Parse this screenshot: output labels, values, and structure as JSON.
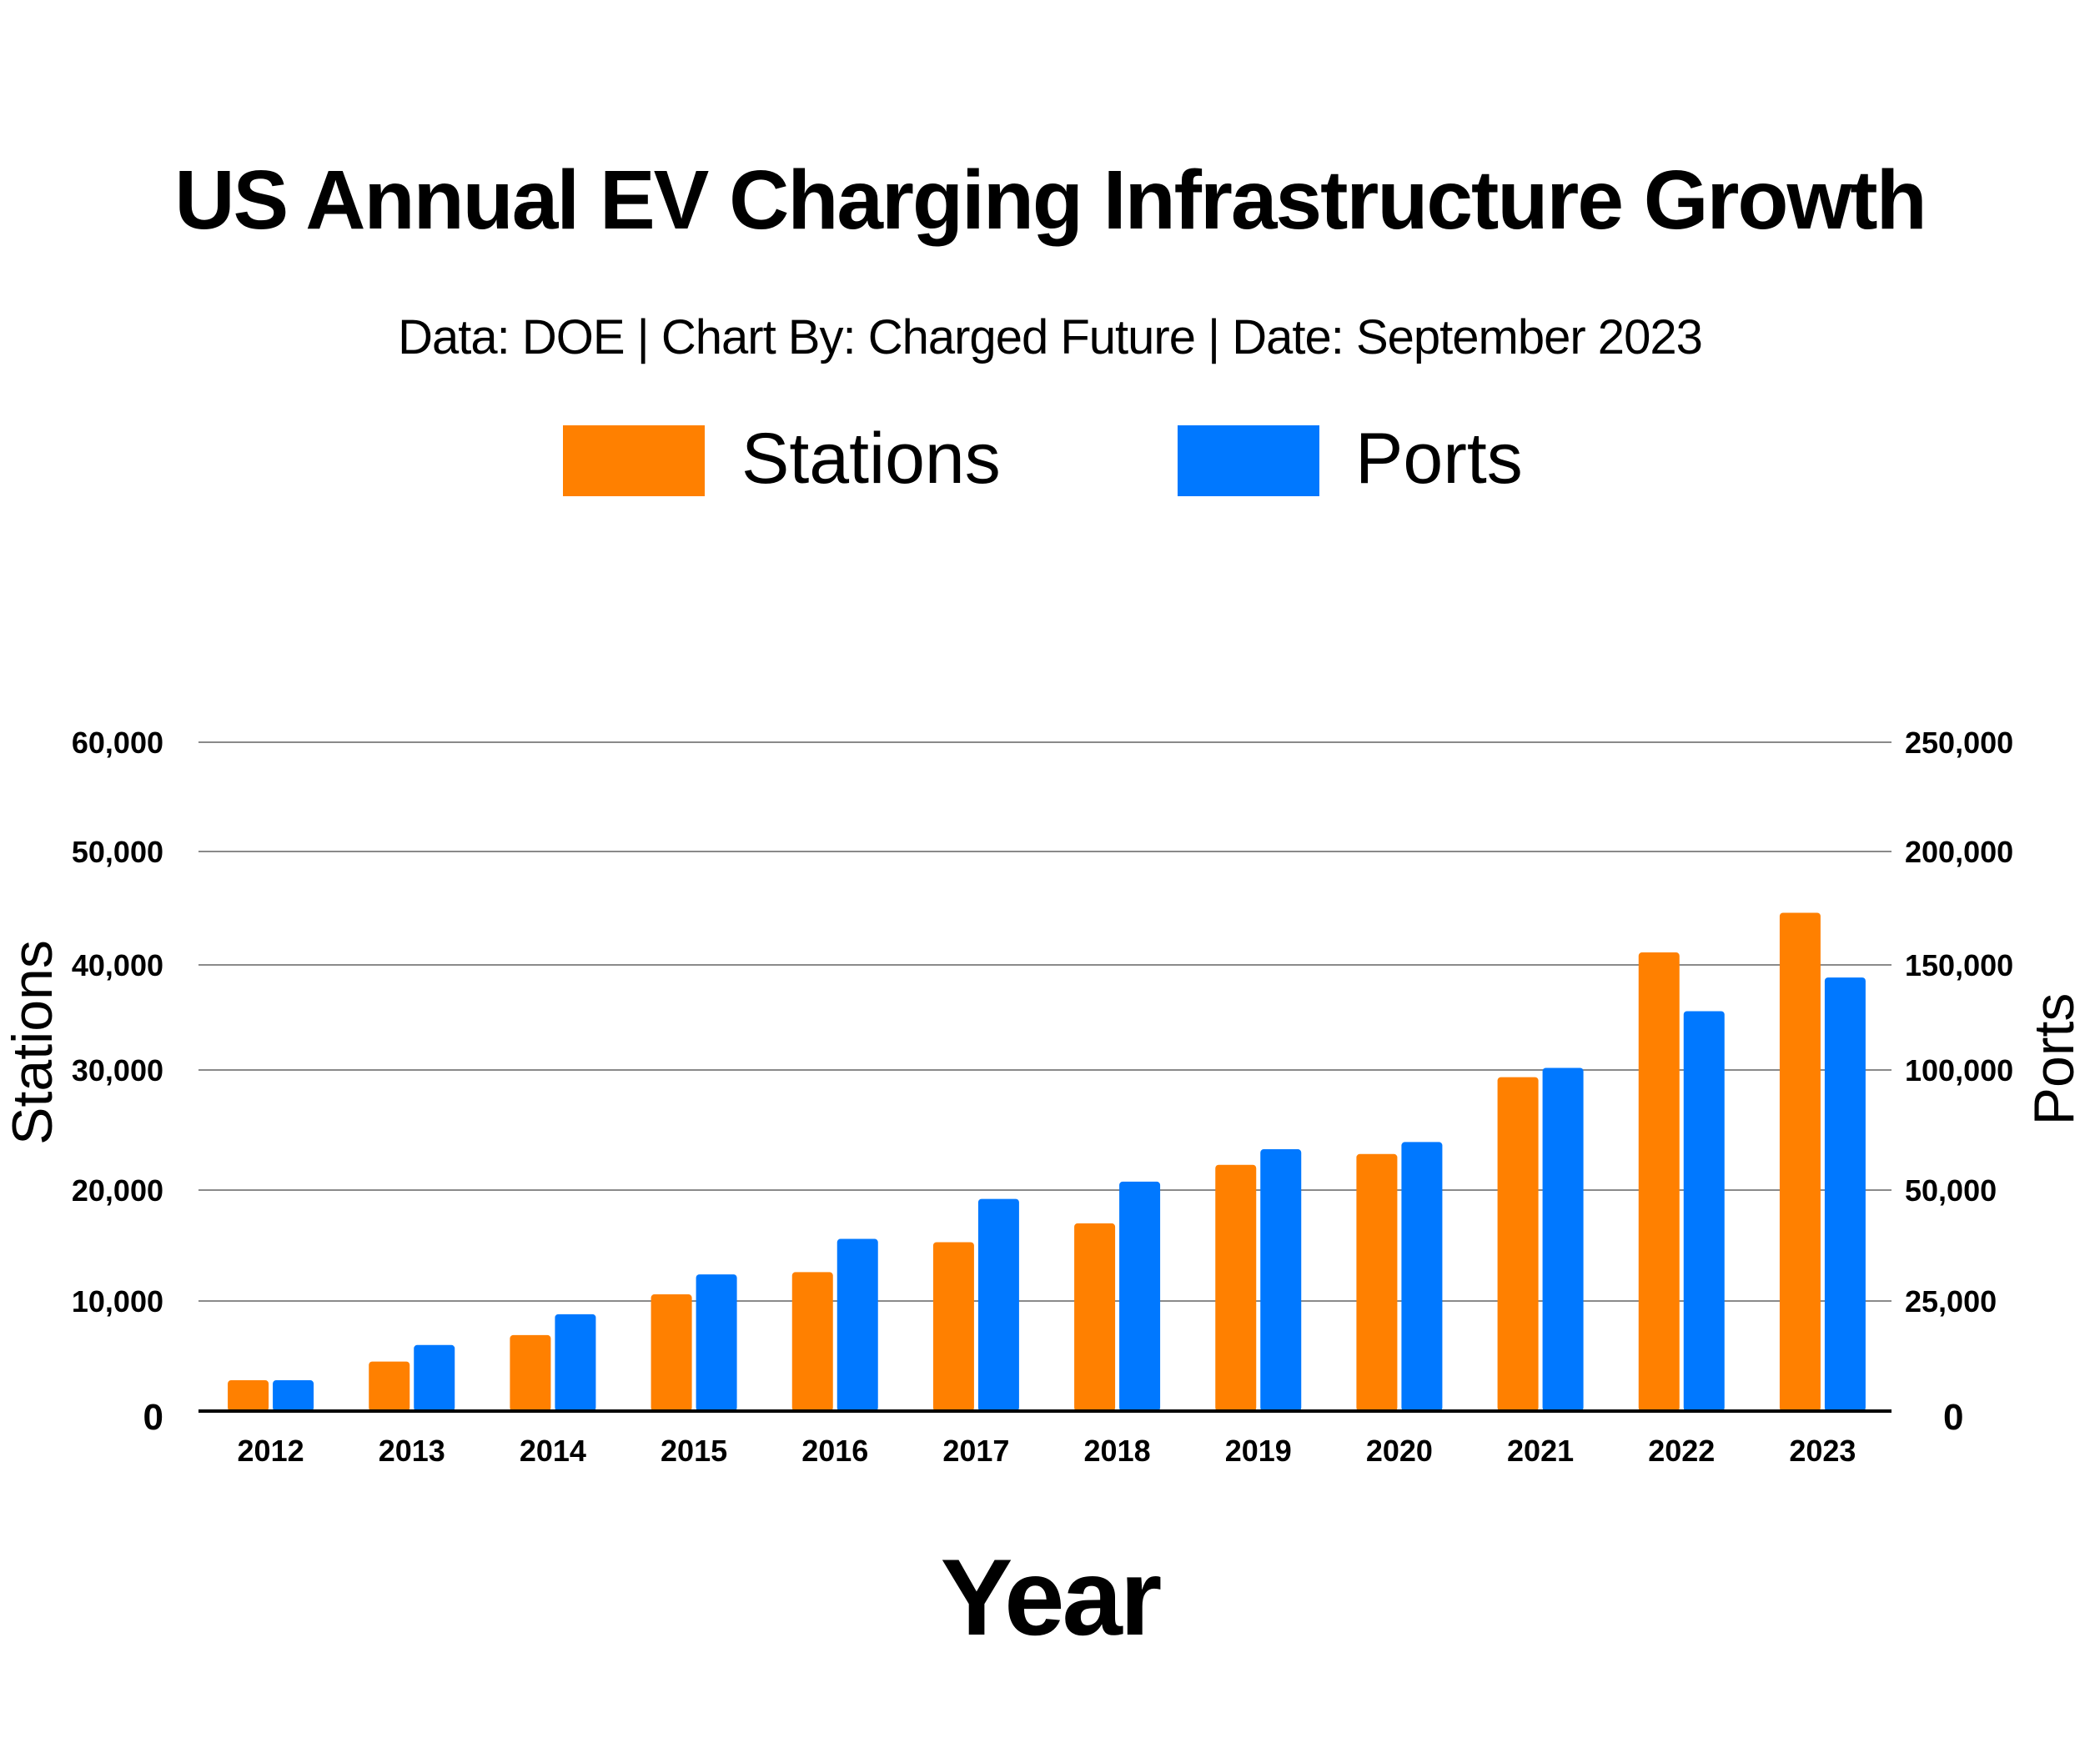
{
  "chart_data": {
    "type": "bar",
    "title": "US Annual EV Charging Infrastructure Growth",
    "subtitle": "Data: DOE | Chart By: Charged Future | Date: September 2023",
    "xlabel": "Year",
    "ylabel_left": "Stations",
    "ylabel_right": "Ports",
    "categories": [
      "2012",
      "2013",
      "2014",
      "2015",
      "2016",
      "2017",
      "2018",
      "2019",
      "2020",
      "2021",
      "2022",
      "2023"
    ],
    "series": [
      {
        "name": "Stations",
        "axis": "left",
        "color": "#FF8000",
        "values": [
          2800,
          4500,
          6900,
          10600,
          12600,
          15300,
          17000,
          22100,
          23000,
          29400,
          41100,
          44600
        ]
      },
      {
        "name": "Ports",
        "axis": "right",
        "color": "#0078FF",
        "values": [
          7000,
          15000,
          22000,
          31000,
          39000,
          48000,
          53500,
          67000,
          70000,
          101000,
          128000,
          144000
        ]
      }
    ],
    "ylim_left": [
      0,
      60000
    ],
    "ylim_right": [
      0,
      250000
    ],
    "left_ticks": [
      "0",
      "10,000",
      "20,000",
      "30,000",
      "40,000",
      "50,000",
      "60,000"
    ],
    "right_ticks": [
      "0",
      "25,000",
      "50,000",
      "100,000",
      "150,000",
      "200,000",
      "250,000"
    ],
    "grid": true,
    "legend_position": "top-center"
  }
}
